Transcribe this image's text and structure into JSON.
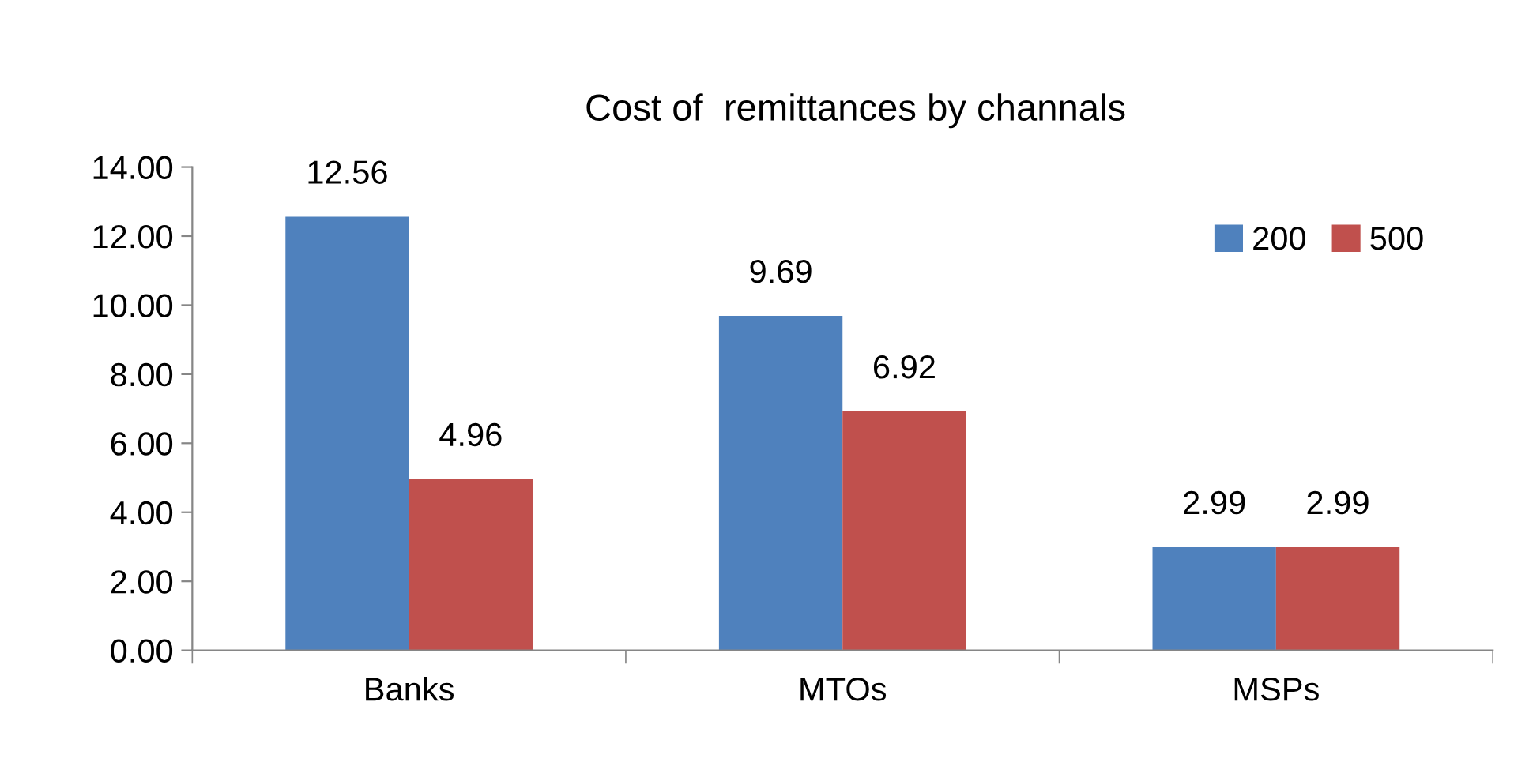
{
  "chart_data": {
    "type": "bar",
    "title": "Cost of  remittances by channals",
    "categories": [
      "Banks",
      "MTOs",
      "MSPs"
    ],
    "series": [
      {
        "name": "200",
        "color": "#4f81bd",
        "values": [
          12.56,
          9.69,
          2.99
        ]
      },
      {
        "name": "500",
        "color": "#c0504d",
        "values": [
          4.96,
          6.92,
          2.99
        ]
      }
    ],
    "ylim": [
      0,
      14
    ],
    "yticks": [
      {
        "value": 0,
        "label": "0.00"
      },
      {
        "value": 2,
        "label": "2.00"
      },
      {
        "value": 4,
        "label": "4.00"
      },
      {
        "value": 6,
        "label": "6.00"
      },
      {
        "value": 8,
        "label": "8.00"
      },
      {
        "value": 10,
        "label": "10.00"
      },
      {
        "value": 12,
        "label": "12.00"
      },
      {
        "value": 14,
        "label": "14.00"
      }
    ],
    "data_labels": true,
    "legend": "top right",
    "grid": false
  }
}
